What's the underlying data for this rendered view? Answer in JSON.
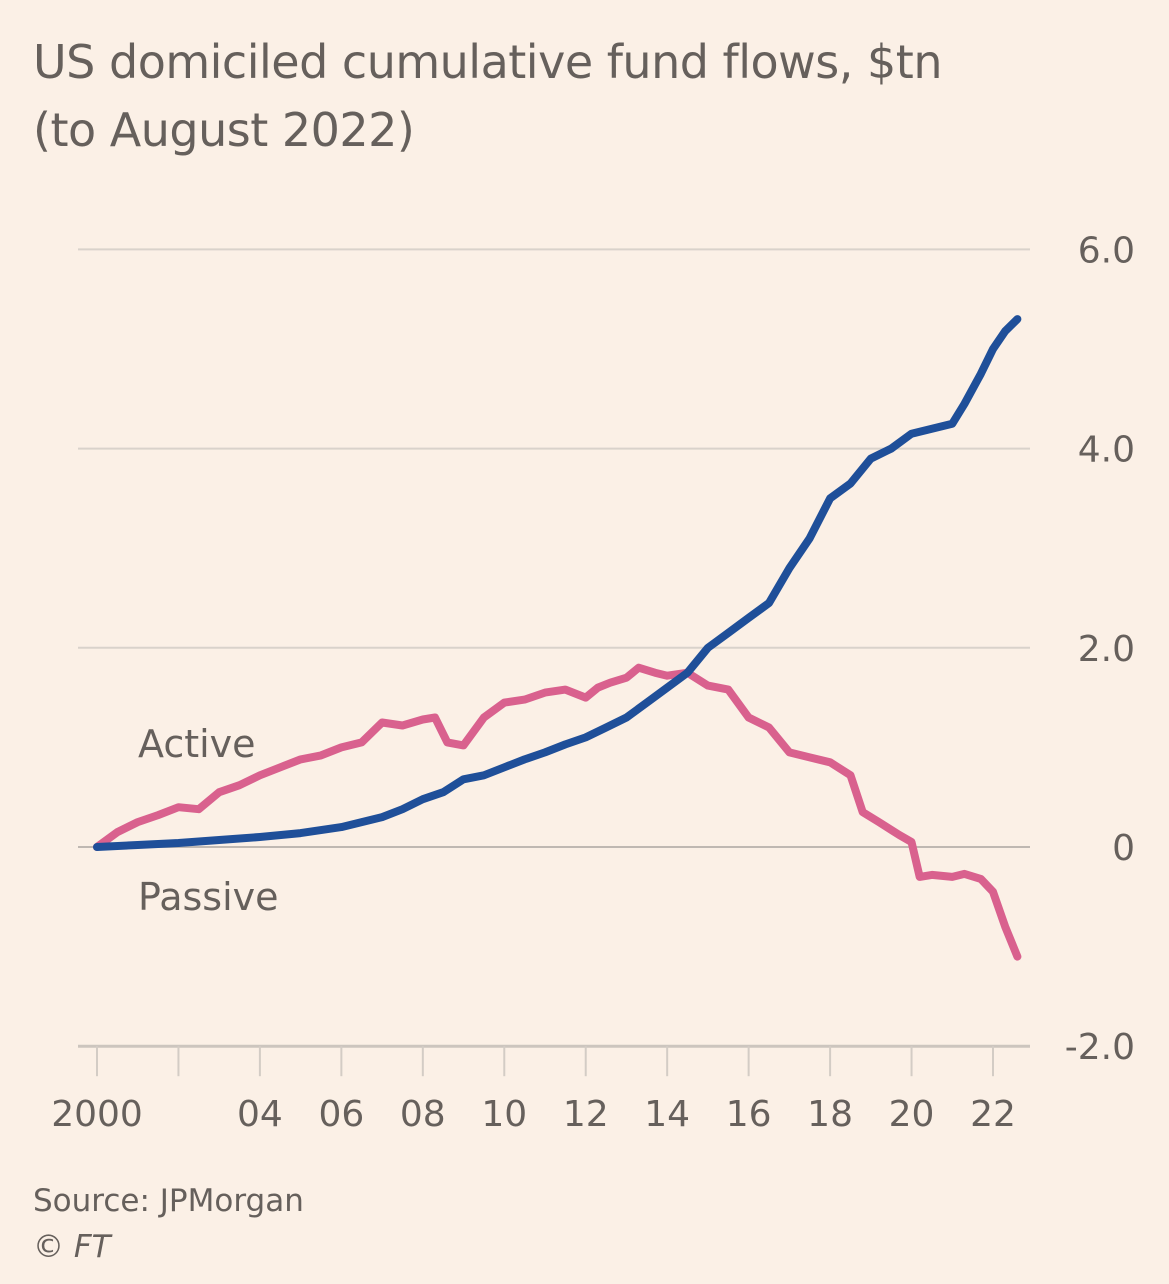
{
  "title": {
    "line1": "US domiciled cumulative fund flows, $tn",
    "line2": "(to August 2022)"
  },
  "footer": {
    "source": "Source: JPMorgan",
    "copyright": "© FT"
  },
  "colors": {
    "background": "#fbf0e6",
    "active": "#d9618e",
    "passive": "#1f4f99",
    "gridline": "#d9d2cb",
    "text": "#66605c"
  },
  "chart_data": {
    "type": "line",
    "title": "US domiciled cumulative fund flows, $tn (to August 2022)",
    "xlabel": "",
    "ylabel": "$tn",
    "xlim": [
      2000,
      2022.7
    ],
    "ylim": [
      -2.0,
      6.0
    ],
    "grid": true,
    "y_axis_side": "right",
    "x_ticks": [
      2000,
      2002,
      2004,
      2006,
      2008,
      2010,
      2012,
      2014,
      2016,
      2018,
      2020,
      2022
    ],
    "x_tick_labels": [
      "2000",
      "",
      "04",
      "06",
      "08",
      "10",
      "12",
      "14",
      "16",
      "18",
      "20",
      "22"
    ],
    "y_ticks": [
      -2.0,
      0,
      2.0,
      4.0,
      6.0
    ],
    "y_tick_labels": [
      "-2.0",
      "0",
      "2.0",
      "4.0",
      "6.0"
    ],
    "legend": "inline labels near left of lines",
    "series": [
      {
        "name": "Active",
        "color": "#d9618e",
        "label_position": "above line, left",
        "x": [
          2000,
          2000.5,
          2001,
          2001.5,
          2002,
          2002.5,
          2003,
          2003.5,
          2004,
          2004.5,
          2005,
          2005.5,
          2006,
          2006.5,
          2007,
          2007.5,
          2008,
          2008.3,
          2008.6,
          2009,
          2009.5,
          2010,
          2010.5,
          2011,
          2011.5,
          2012,
          2012.3,
          2012.6,
          2013,
          2013.3,
          2013.7,
          2014,
          2014.5,
          2015,
          2015.5,
          2016,
          2016.5,
          2017,
          2017.5,
          2018,
          2018.5,
          2018.8,
          2019.2,
          2019.7,
          2020,
          2020.2,
          2020.5,
          2021,
          2021.3,
          2021.7,
          2022,
          2022.3,
          2022.6
        ],
        "values": [
          0,
          0.15,
          0.25,
          0.32,
          0.4,
          0.38,
          0.55,
          0.62,
          0.72,
          0.8,
          0.88,
          0.92,
          1.0,
          1.05,
          1.25,
          1.22,
          1.28,
          1.3,
          1.05,
          1.02,
          1.3,
          1.45,
          1.48,
          1.55,
          1.58,
          1.5,
          1.6,
          1.65,
          1.7,
          1.8,
          1.75,
          1.72,
          1.75,
          1.62,
          1.58,
          1.3,
          1.2,
          0.95,
          0.9,
          0.85,
          0.72,
          0.35,
          0.25,
          0.12,
          0.05,
          -0.3,
          -0.28,
          -0.3,
          -0.27,
          -0.32,
          -0.45,
          -0.8,
          -1.1
        ]
      },
      {
        "name": "Passive",
        "color": "#1f4f99",
        "label_position": "below line, left",
        "x": [
          2000,
          2001,
          2002,
          2003,
          2004,
          2005,
          2006,
          2006.5,
          2007,
          2007.5,
          2008,
          2008.5,
          2009,
          2009.5,
          2010,
          2010.5,
          2011,
          2011.5,
          2012,
          2012.5,
          2013,
          2013.5,
          2014,
          2014.5,
          2015,
          2015.5,
          2016,
          2016.5,
          2017,
          2017.5,
          2018,
          2018.5,
          2019,
          2019.5,
          2020,
          2020.5,
          2021,
          2021.3,
          2021.7,
          2022,
          2022.3,
          2022.6
        ],
        "values": [
          0,
          0.02,
          0.04,
          0.07,
          0.1,
          0.14,
          0.2,
          0.25,
          0.3,
          0.38,
          0.48,
          0.55,
          0.68,
          0.72,
          0.8,
          0.88,
          0.95,
          1.03,
          1.1,
          1.2,
          1.3,
          1.45,
          1.6,
          1.75,
          2.0,
          2.15,
          2.3,
          2.45,
          2.8,
          3.1,
          3.5,
          3.65,
          3.9,
          4.0,
          4.15,
          4.2,
          4.25,
          4.45,
          4.75,
          5.0,
          5.18,
          5.3
        ]
      }
    ]
  }
}
